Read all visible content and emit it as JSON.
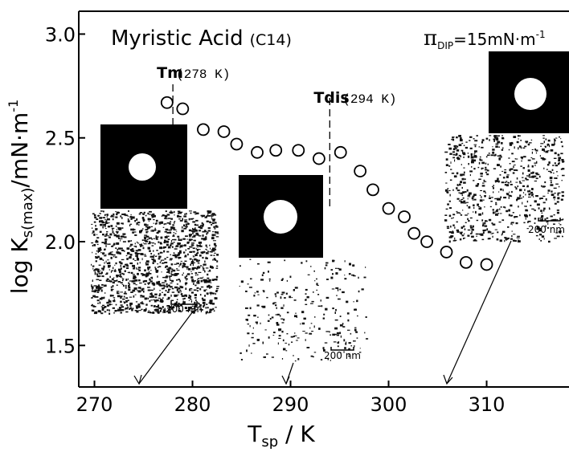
{
  "chart_data": {
    "type": "scatter",
    "title": "Myristic Acid",
    "title_suffix": "(C14)",
    "condition": {
      "symbol": "π",
      "sub": "DIP",
      "text": "=15mN·m",
      "sup": "-1"
    },
    "x_label": {
      "main": "T",
      "sub": "sp",
      "rest": " / K"
    },
    "y_label": {
      "main": "log K",
      "sub": "s(max)",
      "rest": "/mN·m",
      "sup": "-1"
    },
    "x": [
      277.4,
      279.0,
      281.1,
      283.2,
      284.5,
      286.6,
      288.5,
      290.8,
      292.9,
      295.1,
      297.1,
      298.4,
      300.0,
      301.6,
      302.6,
      303.9,
      305.9,
      307.9,
      310.0
    ],
    "values": [
      2.67,
      2.64,
      2.54,
      2.53,
      2.47,
      2.43,
      2.44,
      2.44,
      2.4,
      2.43,
      2.34,
      2.25,
      2.16,
      2.12,
      2.04,
      2.0,
      1.95,
      1.9,
      1.89
    ],
    "xlim": [
      268.4,
      318.4
    ],
    "ylim": [
      1.3,
      3.11
    ],
    "xticks": [
      270,
      280,
      290,
      300,
      310
    ],
    "yticks": [
      {
        "value": 3,
        "label": "3.0"
      },
      2.5,
      {
        "value": 2,
        "label": "2.0"
      },
      1.5
    ],
    "annotations": [
      {
        "label": "Tm",
        "detail": "(278 K)",
        "x": 278
      },
      {
        "label": "Tdis",
        "detail": "(294 K)",
        "x": 294
      }
    ],
    "insets": [
      {
        "scale_label": "200 nm"
      },
      {
        "scale_label": "200 nm"
      },
      {
        "scale_label": "200 nm"
      }
    ]
  }
}
